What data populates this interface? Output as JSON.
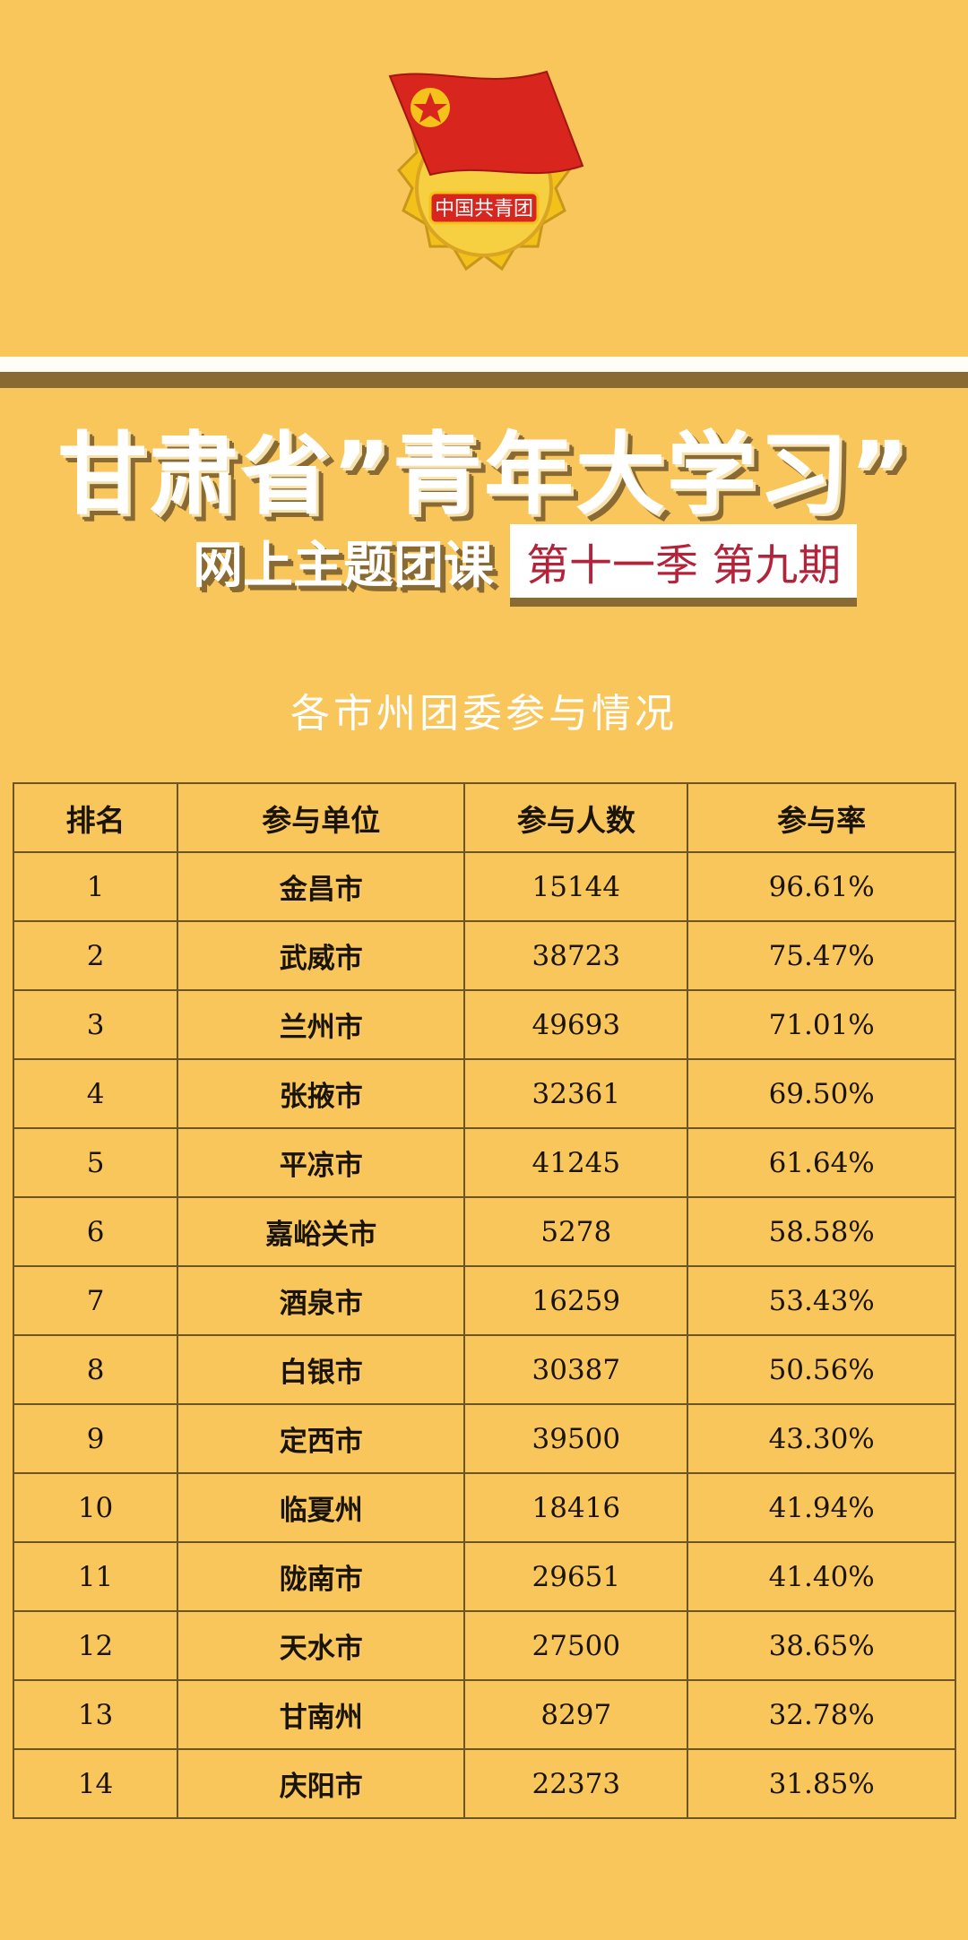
{
  "colors": {
    "background": "#f9c65b",
    "accent_brown": "#8a6a33",
    "season_red": "#b3243a"
  },
  "logo": {
    "icon": "communist-youth-league-emblem",
    "text": "中国共青团"
  },
  "title": "甘肃省”青年大学习”",
  "subtitle": "网上主题团课",
  "season": "第十一季 第九期",
  "section_title": "各市州团委参与情况",
  "table": {
    "headers": [
      "排名",
      "参与单位",
      "参与人数",
      "参与率"
    ],
    "rows": [
      [
        "1",
        "金昌市",
        "15144",
        "96.61%"
      ],
      [
        "2",
        "武威市",
        "38723",
        "75.47%"
      ],
      [
        "3",
        "兰州市",
        "49693",
        "71.01%"
      ],
      [
        "4",
        "张掖市",
        "32361",
        "69.50%"
      ],
      [
        "5",
        "平凉市",
        "41245",
        "61.64%"
      ],
      [
        "6",
        "嘉峪关市",
        "5278",
        "58.58%"
      ],
      [
        "7",
        "酒泉市",
        "16259",
        "53.43%"
      ],
      [
        "8",
        "白银市",
        "30387",
        "50.56%"
      ],
      [
        "9",
        "定西市",
        "39500",
        "43.30%"
      ],
      [
        "10",
        "临夏州",
        "18416",
        "41.94%"
      ],
      [
        "11",
        "陇南市",
        "29651",
        "41.40%"
      ],
      [
        "12",
        "天水市",
        "27500",
        "38.65%"
      ],
      [
        "13",
        "甘南州",
        "8297",
        "32.78%"
      ],
      [
        "14",
        "庆阳市",
        "22373",
        "31.85%"
      ]
    ]
  }
}
